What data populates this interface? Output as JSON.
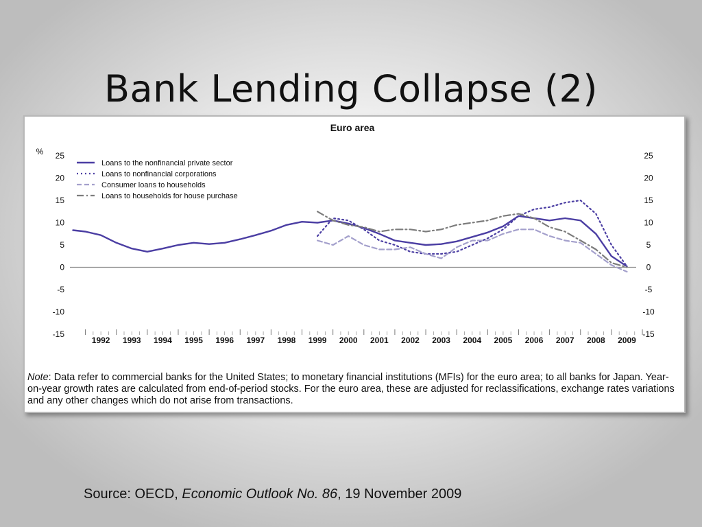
{
  "slide": {
    "title": "Bank Lending Collapse (2)"
  },
  "note": {
    "label": "Note",
    "text": ": Data refer to commercial banks for the United States; to monetary financial institutions (MFIs) for the euro area; to all banks for Japan. Year-on-year growth rates are calculated from end-of-period stocks. For the euro area, these are adjusted for reclassifications, exchange rates variations and any other changes which do not arise from transactions."
  },
  "source": {
    "prefix": "Source: OECD, ",
    "publication": "Economic Outlook No. 86",
    "suffix": ", 19 November 2009"
  },
  "chart_data": {
    "type": "line",
    "title": "Euro area",
    "ylabel": "%",
    "ylim": [
      -15,
      25
    ],
    "xlim": [
      1991.5,
      2009.8
    ],
    "y_ticks": [
      "25",
      "20",
      "15",
      "10",
      "5",
      "0",
      "-5",
      "-10",
      "-15"
    ],
    "x_ticks": [
      "1992",
      "1993",
      "1994",
      "1995",
      "1996",
      "1997",
      "1998",
      "1999",
      "2000",
      "2001",
      "2002",
      "2003",
      "2004",
      "2005",
      "2006",
      "2007",
      "2008",
      "2009"
    ],
    "legend_position": "top-left",
    "series": [
      {
        "name": "Loans to the nonfinancial private sector",
        "style": "solid",
        "color": "#4b3ea3",
        "x": [
          1991.6,
          1992.0,
          1992.5,
          1993.0,
          1993.5,
          1994.0,
          1994.5,
          1995.0,
          1995.5,
          1996.0,
          1996.5,
          1997.0,
          1997.5,
          1998.0,
          1998.5,
          1999.0,
          1999.5,
          2000.0,
          2000.5,
          2001.0,
          2001.5,
          2002.0,
          2002.5,
          2003.0,
          2003.5,
          2004.0,
          2004.5,
          2005.0,
          2005.5,
          2006.0,
          2006.5,
          2007.0,
          2007.5,
          2008.0,
          2008.5,
          2009.0,
          2009.5
        ],
        "values": [
          8.3,
          8.0,
          7.2,
          5.5,
          4.2,
          3.5,
          4.2,
          5.0,
          5.5,
          5.2,
          5.5,
          6.3,
          7.2,
          8.2,
          9.5,
          10.2,
          10.0,
          10.5,
          9.8,
          8.8,
          7.5,
          6.0,
          5.5,
          5.0,
          5.2,
          5.8,
          6.8,
          7.8,
          9.2,
          11.5,
          11.0,
          10.5,
          11.0,
          10.5,
          7.5,
          2.5,
          0.2
        ]
      },
      {
        "name": "Loans to nonfinancial corporations",
        "style": "dotted",
        "color": "#4b3ea3",
        "x": [
          1999.5,
          2000.0,
          2000.5,
          2001.0,
          2001.5,
          2002.0,
          2002.5,
          2003.0,
          2003.5,
          2004.0,
          2004.5,
          2005.0,
          2005.5,
          2006.0,
          2006.5,
          2007.0,
          2007.5,
          2008.0,
          2008.5,
          2009.0,
          2009.5
        ],
        "values": [
          7.0,
          11.0,
          10.5,
          8.5,
          6.0,
          5.0,
          3.5,
          3.0,
          3.0,
          3.5,
          5.0,
          6.5,
          8.5,
          11.5,
          13.0,
          13.5,
          14.5,
          15.0,
          12.0,
          5.0,
          0.2
        ]
      },
      {
        "name": "Consumer loans to households",
        "style": "dashed",
        "color": "#a4a0cc",
        "x": [
          1999.5,
          2000.0,
          2000.5,
          2001.0,
          2001.5,
          2002.0,
          2002.5,
          2003.0,
          2003.5,
          2004.0,
          2004.5,
          2005.0,
          2005.5,
          2006.0,
          2006.5,
          2007.0,
          2007.5,
          2008.0,
          2008.5,
          2009.0,
          2009.5
        ],
        "values": [
          6.0,
          5.0,
          7.0,
          5.0,
          4.0,
          4.0,
          4.5,
          3.0,
          2.0,
          4.5,
          6.0,
          6.0,
          7.5,
          8.5,
          8.5,
          7.0,
          6.0,
          5.5,
          3.0,
          0.5,
          -1.0
        ]
      },
      {
        "name": "Loans to households for house purchase",
        "style": "dashdot",
        "color": "#7c7c7c",
        "x": [
          1999.5,
          2000.0,
          2000.5,
          2001.0,
          2001.5,
          2002.0,
          2002.5,
          2003.0,
          2003.5,
          2004.0,
          2004.5,
          2005.0,
          2005.5,
          2006.0,
          2006.5,
          2007.0,
          2007.5,
          2008.0,
          2008.5,
          2009.0,
          2009.5
        ],
        "values": [
          12.5,
          10.5,
          9.5,
          9.0,
          8.0,
          8.5,
          8.5,
          8.0,
          8.5,
          9.5,
          10.0,
          10.5,
          11.5,
          12.0,
          11.0,
          9.0,
          8.0,
          6.0,
          4.0,
          1.0,
          0.0
        ]
      }
    ]
  }
}
